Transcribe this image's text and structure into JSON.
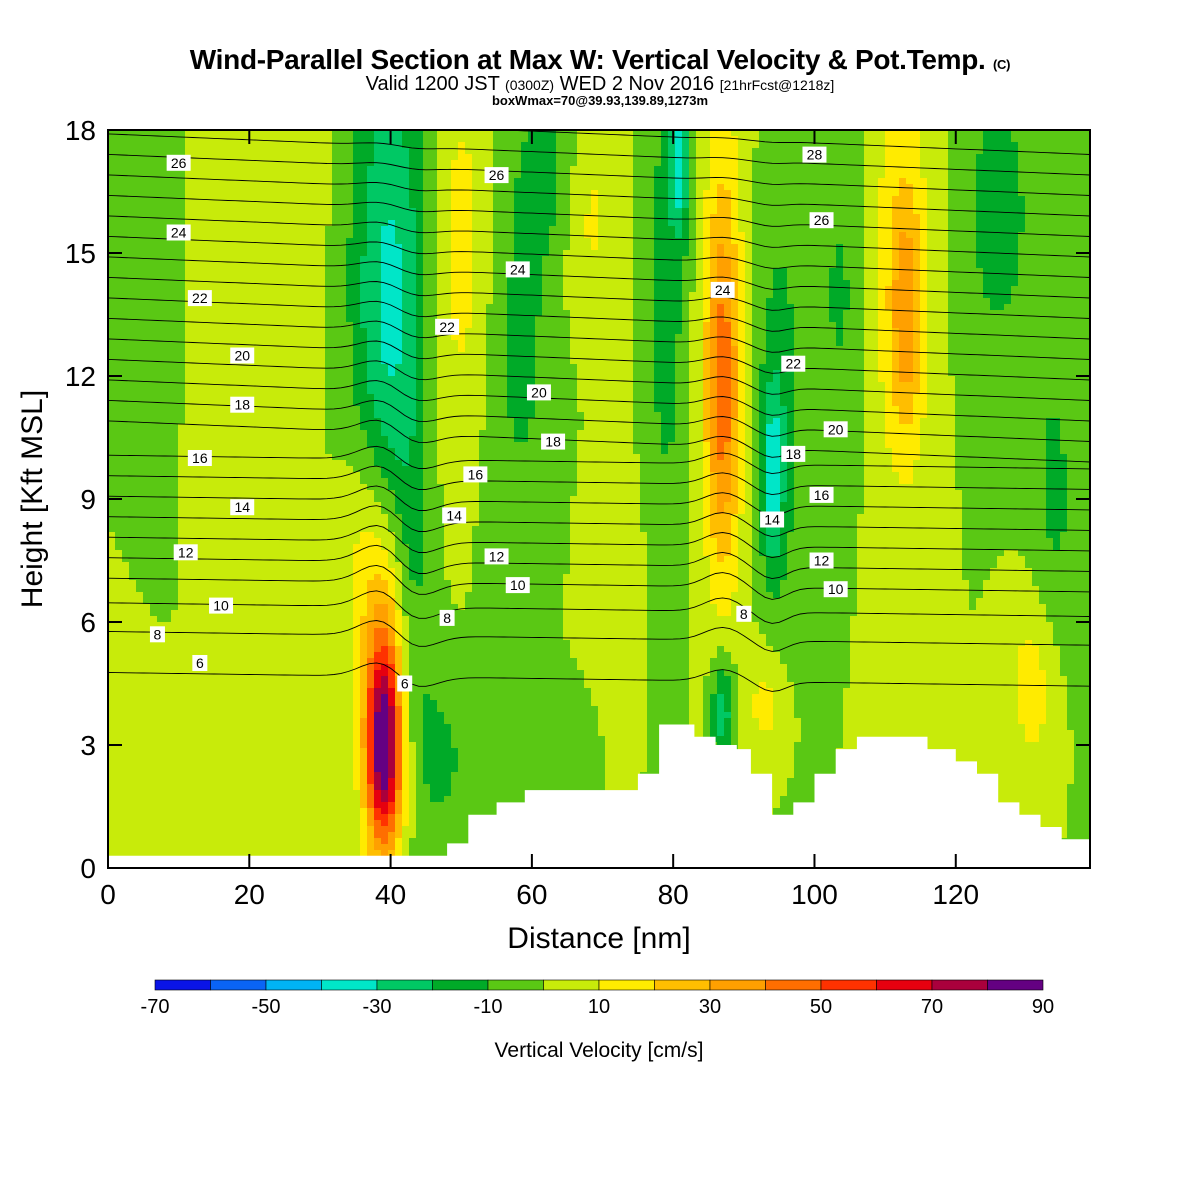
{
  "header": {
    "title_main": "Wind-Parallel Section at Max W: Vertical Velocity & Pot.Temp.",
    "title_tag": "(C)",
    "valid_prefix": "Valid 1200 JST",
    "valid_zulu": "(0300Z)",
    "valid_date": "WED 2 Nov 2016",
    "valid_fcst": "[21hrFcst@1218z]",
    "box_note": "boxWmax=70@39.93,139.89,1273m"
  },
  "chart_data": {
    "type": "heatmap",
    "title": "Wind-Parallel Section at Max W: Vertical Velocity & Pot.Temp.",
    "xlabel": "Distance [nm]",
    "ylabel": "Height [Kft MSL]",
    "xlim": [
      0,
      139
    ],
    "ylim": [
      0,
      18
    ],
    "xticks": [
      0,
      20,
      40,
      60,
      80,
      100,
      120
    ],
    "yticks": [
      0,
      3,
      6,
      9,
      12,
      15,
      18
    ],
    "colorbar": {
      "label": "Vertical Velocity [cm/s]",
      "tick_labels": [
        "-70",
        "-50",
        "-30",
        "-10",
        "10",
        "30",
        "50",
        "70",
        "90"
      ],
      "tick_values": [
        -70,
        -50,
        -30,
        -10,
        10,
        30,
        50,
        70,
        90
      ],
      "levels": [
        -70,
        -60,
        -50,
        -40,
        -30,
        -20,
        -10,
        0,
        10,
        20,
        30,
        40,
        50,
        60,
        70,
        80,
        90
      ],
      "colors": [
        "#0a14e6",
        "#0a64f5",
        "#00b4f5",
        "#00e6c8",
        "#00c864",
        "#00aa28",
        "#5ac814",
        "#c8eb0a",
        "#ffeb00",
        "#ffbe00",
        "#ffa000",
        "#ff6e00",
        "#ff3200",
        "#e6000f",
        "#aa003c",
        "#640082"
      ]
    },
    "background_value": 0,
    "terrain": {
      "distance": [
        0,
        48,
        48,
        51,
        51,
        55,
        55,
        59,
        59,
        75,
        75,
        78,
        78,
        83,
        83,
        86,
        86,
        89,
        89,
        91,
        91,
        94,
        94,
        97,
        97,
        100,
        100,
        103,
        103,
        106,
        106,
        116,
        116,
        120,
        120,
        123,
        123,
        126,
        126,
        129,
        129,
        132,
        132,
        135,
        135,
        139
      ],
      "height": [
        0.3,
        0.3,
        0.6,
        0.6,
        1.3,
        1.3,
        1.6,
        1.6,
        1.9,
        1.9,
        2.3,
        2.3,
        3.5,
        3.5,
        3.2,
        3.2,
        3.0,
        3.0,
        2.9,
        2.9,
        2.3,
        2.3,
        1.3,
        1.3,
        1.6,
        1.6,
        2.3,
        2.3,
        2.9,
        2.9,
        3.2,
        3.2,
        2.9,
        2.9,
        2.6,
        2.6,
        2.3,
        2.3,
        1.6,
        1.6,
        1.3,
        1.3,
        1.0,
        1.0,
        0.7,
        0.7
      ]
    },
    "wv_features": [
      {
        "x": 39,
        "y": 3.0,
        "sx": 1.7,
        "sy": 1.8,
        "v": 75
      },
      {
        "x": 39,
        "y": 5.0,
        "sx": 2.6,
        "sy": 3.0,
        "v": 22
      },
      {
        "x": 36,
        "y": 8.0,
        "sx": 2.5,
        "sy": 2.0,
        "v": 10
      },
      {
        "x": 42,
        "y": 2.4,
        "sx": 3.0,
        "sy": 1.2,
        "v": 12
      },
      {
        "x": 46,
        "y": 2.6,
        "sx": 3.5,
        "sy": 1.4,
        "v": -16
      },
      {
        "x": 43,
        "y": 7.0,
        "sx": 2.0,
        "sy": 4.0,
        "v": -13
      },
      {
        "x": 40,
        "y": 15.5,
        "sx": 4.0,
        "sy": 3.5,
        "v": -28
      },
      {
        "x": 39,
        "y": 11.0,
        "sx": 3.0,
        "sy": 2.5,
        "v": -15
      },
      {
        "x": 50,
        "y": 15.0,
        "sx": 3.5,
        "sy": 3.5,
        "v": 16
      },
      {
        "x": 58,
        "y": 13.0,
        "sx": 4.0,
        "sy": 4.0,
        "v": -13
      },
      {
        "x": 63,
        "y": 17.0,
        "sx": 3.0,
        "sy": 1.5,
        "v": -12
      },
      {
        "x": 68,
        "y": 16.0,
        "sx": 3.0,
        "sy": 2.0,
        "v": 13
      },
      {
        "x": 79,
        "y": 14.0,
        "sx": 2.0,
        "sy": 4.5,
        "v": -15
      },
      {
        "x": 81,
        "y": 17.2,
        "sx": 1.0,
        "sy": 1.3,
        "v": -30
      },
      {
        "x": 87,
        "y": 11.5,
        "sx": 1.8,
        "sy": 3.0,
        "v": 32
      },
      {
        "x": 87,
        "y": 13.5,
        "sx": 2.0,
        "sy": 5.0,
        "v": 16
      },
      {
        "x": 95,
        "y": 11.0,
        "sx": 2.2,
        "sy": 3.5,
        "v": -17
      },
      {
        "x": 94,
        "y": 9.5,
        "sx": 1.0,
        "sy": 1.5,
        "v": -25
      },
      {
        "x": 87,
        "y": 3.8,
        "sx": 1.2,
        "sy": 1.0,
        "v": -28
      },
      {
        "x": 93,
        "y": 4.0,
        "sx": 2.0,
        "sy": 1.0,
        "v": 14
      },
      {
        "x": 112,
        "y": 14.5,
        "sx": 3.5,
        "sy": 4.0,
        "v": 17
      },
      {
        "x": 113,
        "y": 13.5,
        "sx": 1.5,
        "sy": 2.0,
        "v": 25
      },
      {
        "x": 104,
        "y": 14.0,
        "sx": 3.0,
        "sy": 3.0,
        "v": -12
      },
      {
        "x": 126,
        "y": 16.0,
        "sx": 4.0,
        "sy": 3.0,
        "v": -14
      },
      {
        "x": 134,
        "y": 9.0,
        "sx": 2.5,
        "sy": 3.0,
        "v": -12
      },
      {
        "x": 131,
        "y": 4.5,
        "sx": 2.5,
        "sy": 1.6,
        "v": 16
      },
      {
        "x": 16,
        "y": 12.0,
        "sx": 4.0,
        "sy": 5.0,
        "v": 9
      },
      {
        "x": 25,
        "y": 16.5,
        "sx": 4.0,
        "sy": 3.0,
        "v": 9
      },
      {
        "x": 8,
        "y": 13.0,
        "sx": 3.0,
        "sy": 5.0,
        "v": -5
      },
      {
        "x": 4,
        "y": 3.0,
        "sx": 4.0,
        "sy": 2.0,
        "v": 6
      },
      {
        "x": 66,
        "y": 3.0,
        "sx": 2.0,
        "sy": 1.0,
        "v": -8
      },
      {
        "x": 71,
        "y": 7.0,
        "sx": 3.0,
        "sy": 2.0,
        "v": 8
      }
    ],
    "isentrope_labels": [
      "6",
      "8",
      "10",
      "12",
      "14",
      "16",
      "18",
      "20",
      "22",
      "24",
      "26",
      "28"
    ],
    "isentrope_annotations": [
      {
        "label": "26",
        "x": 10,
        "y": 17.2
      },
      {
        "label": "24",
        "x": 10,
        "y": 15.5
      },
      {
        "label": "22",
        "x": 13,
        "y": 13.9
      },
      {
        "label": "20",
        "x": 19,
        "y": 12.5
      },
      {
        "label": "18",
        "x": 19,
        "y": 11.3
      },
      {
        "label": "16",
        "x": 13,
        "y": 10.0
      },
      {
        "label": "14",
        "x": 19,
        "y": 8.8
      },
      {
        "label": "12",
        "x": 11,
        "y": 7.7
      },
      {
        "label": "10",
        "x": 16,
        "y": 6.4
      },
      {
        "label": "8",
        "x": 7,
        "y": 5.7
      },
      {
        "label": "6",
        "x": 13,
        "y": 5.0
      },
      {
        "label": "6",
        "x": 42,
        "y": 4.5
      },
      {
        "label": "8",
        "x": 48,
        "y": 6.1
      },
      {
        "label": "10",
        "x": 58,
        "y": 6.9
      },
      {
        "label": "12",
        "x": 55,
        "y": 7.6
      },
      {
        "label": "14",
        "x": 49,
        "y": 8.6
      },
      {
        "label": "16",
        "x": 52,
        "y": 9.6
      },
      {
        "label": "18",
        "x": 63,
        "y": 10.4
      },
      {
        "label": "20",
        "x": 61,
        "y": 11.6
      },
      {
        "label": "22",
        "x": 48,
        "y": 13.2
      },
      {
        "label": "24",
        "x": 58,
        "y": 14.6
      },
      {
        "label": "26",
        "x": 55,
        "y": 16.9
      },
      {
        "label": "24",
        "x": 87,
        "y": 14.1
      },
      {
        "label": "22",
        "x": 97,
        "y": 12.3
      },
      {
        "label": "20",
        "x": 103,
        "y": 10.7
      },
      {
        "label": "18",
        "x": 97,
        "y": 10.1
      },
      {
        "label": "16",
        "x": 101,
        "y": 9.1
      },
      {
        "label": "14",
        "x": 94,
        "y": 8.5
      },
      {
        "label": "12",
        "x": 101,
        "y": 7.5
      },
      {
        "label": "10",
        "x": 103,
        "y": 6.8
      },
      {
        "label": "8",
        "x": 90,
        "y": 6.2
      },
      {
        "label": "26",
        "x": 101,
        "y": 15.8
      },
      {
        "label": "28",
        "x": 100,
        "y": 17.4
      }
    ]
  }
}
